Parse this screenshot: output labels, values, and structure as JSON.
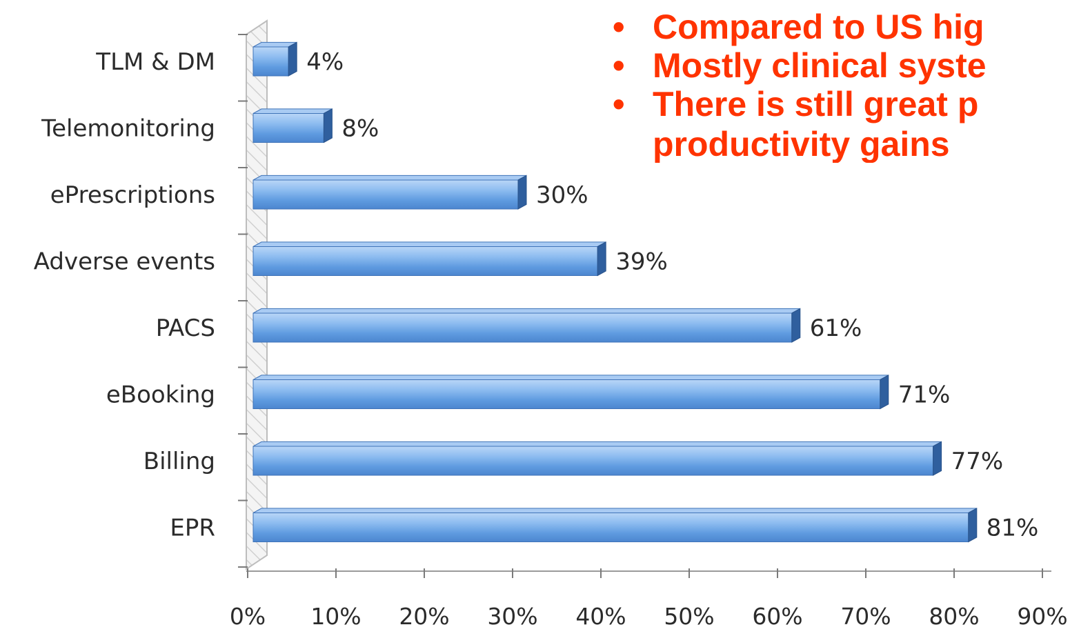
{
  "chart_data": {
    "type": "bar",
    "orientation": "horizontal",
    "categories": [
      "TLM & DM",
      "Telemonitoring",
      "ePrescriptions",
      "Adverse events",
      "PACS",
      "eBooking",
      "Billing",
      "EPR"
    ],
    "values": [
      4,
      8,
      30,
      39,
      61,
      71,
      77,
      81
    ],
    "value_labels": [
      "4%",
      "8%",
      "30%",
      "39%",
      "61%",
      "71%",
      "77%",
      "81%"
    ],
    "x_ticks": [
      "0%",
      "10%",
      "20%",
      "30%",
      "40%",
      "50%",
      "60%",
      "70%",
      "80%",
      "90%"
    ],
    "xlim": [
      0,
      90
    ],
    "title": "",
    "xlabel": "",
    "ylabel": "",
    "grid": false,
    "bar_color": "#6fa5e6",
    "bar_edge_color": "#3f73b8",
    "style": "3d-bars"
  },
  "bullets": [
    {
      "marker": "•",
      "text": "Compared to US hig",
      "text2": ""
    },
    {
      "marker": "•",
      "text": "Mostly clinical syste",
      "text2": ""
    },
    {
      "marker": "•",
      "text": "There is still great p",
      "text2": "productivity gains"
    }
  ],
  "text_color": "#ff3300"
}
